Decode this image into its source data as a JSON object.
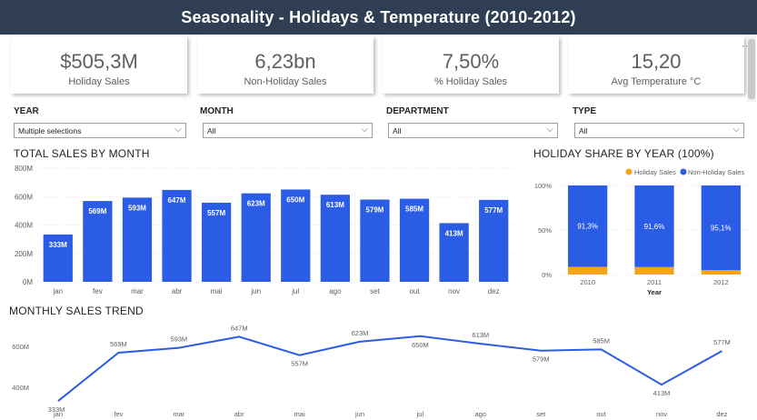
{
  "header": {
    "title": "Seasonality - Holidays & Temperature (2010-2012)"
  },
  "kpis": [
    {
      "value": "$505,3M",
      "label": "Holiday Sales"
    },
    {
      "value": "6,23bn",
      "label": "Non-Holiday Sales"
    },
    {
      "value": "7,50%",
      "label": "% Holiday Sales"
    },
    {
      "value": "15,20",
      "label": "Avg Temperature °C"
    }
  ],
  "more_icon": "more-options-icon",
  "slicers": [
    {
      "title": "YEAR",
      "value": "Multiple selections"
    },
    {
      "title": "MONTH",
      "value": "All"
    },
    {
      "title": "DEPARTMENT",
      "value": "All"
    },
    {
      "title": "TYPE",
      "value": "All"
    }
  ],
  "colors": {
    "header_bg": "#2f3e52",
    "bar": "#2b5ce6",
    "holiday": "#f5a31a",
    "line": "#2b5ce6"
  },
  "chart_data": [
    {
      "id": "sales_by_month",
      "type": "bar",
      "title": "TOTAL SALES BY MONTH",
      "categories": [
        "jan",
        "fev",
        "mar",
        "abr",
        "mai",
        "jun",
        "jul",
        "ago",
        "set",
        "out",
        "nov",
        "dez"
      ],
      "values": [
        333,
        569,
        593,
        647,
        557,
        623,
        650,
        613,
        579,
        585,
        413,
        577
      ],
      "data_labels": [
        "333M",
        "569M",
        "593M",
        "647M",
        "557M",
        "623M",
        "650M",
        "613M",
        "579M",
        "585M",
        "413M",
        "577M"
      ],
      "y_ticks": [
        "0M",
        "200M",
        "400M",
        "600M",
        "800M"
      ],
      "ylim": [
        0,
        800
      ],
      "grid": true
    },
    {
      "id": "holiday_share",
      "type": "bar",
      "stacked": "100%",
      "title": "HOLIDAY SHARE BY YEAR (100%)",
      "categories": [
        "2010",
        "2011",
        "2012"
      ],
      "xlabel": "Year",
      "legend": [
        "Holiday Sales",
        "Non-Holiday Sales"
      ],
      "legend_position": "top-right",
      "series": [
        {
          "name": "Holiday Sales",
          "values": [
            8.7,
            8.4,
            4.9
          ]
        },
        {
          "name": "Non-Holiday Sales",
          "values": [
            91.3,
            91.6,
            95.1
          ]
        }
      ],
      "data_labels": [
        "91,3%",
        "91,6%",
        "95,1%"
      ],
      "y_ticks": [
        "0%",
        "50%",
        "100%"
      ],
      "ylim": [
        0,
        100
      ]
    },
    {
      "id": "monthly_trend",
      "type": "line",
      "title": "MONTHLY SALES TREND",
      "categories": [
        "jan",
        "fev",
        "mar",
        "abr",
        "mai",
        "jun",
        "jul",
        "ago",
        "set",
        "out",
        "nov",
        "dez"
      ],
      "values": [
        333,
        569,
        593,
        647,
        557,
        623,
        650,
        613,
        579,
        585,
        413,
        577
      ],
      "data_labels": [
        "333M",
        "569M",
        "593M",
        "647M",
        "557M",
        "623M",
        "650M",
        "613M",
        "579M",
        "585M",
        "413M",
        "577M"
      ],
      "y_ticks": [
        "400M",
        "600M"
      ],
      "y_tick_values": [
        400,
        600
      ]
    }
  ]
}
